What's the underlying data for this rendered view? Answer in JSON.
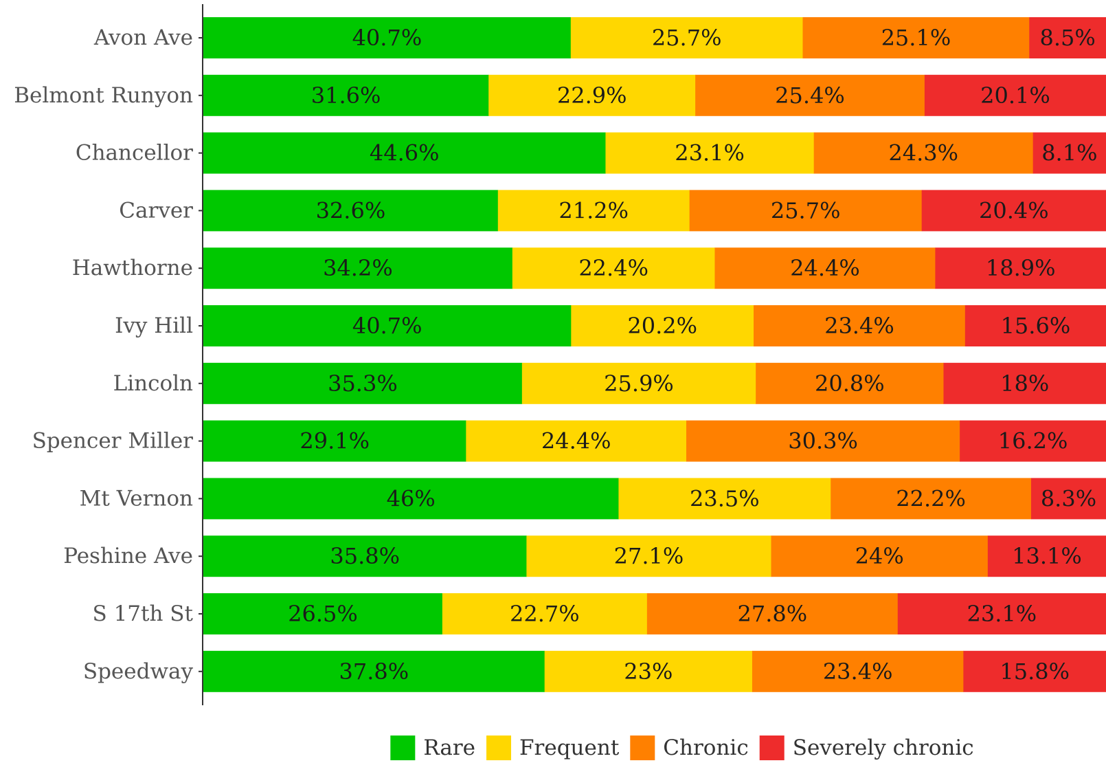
{
  "chart_data": {
    "type": "bar",
    "orientation": "horizontal",
    "stacked": true,
    "percent_stacked": true,
    "categories": [
      "Avon Ave",
      "Belmont Runyon",
      "Chancellor",
      "Carver",
      "Hawthorne",
      "Ivy Hill",
      "Lincoln",
      "Spencer Miller",
      "Mt Vernon",
      "Peshine Ave",
      "S 17th St",
      "Speedway"
    ],
    "series": [
      {
        "name": "Rare",
        "color": "#00c800",
        "values": [
          40.7,
          31.6,
          44.6,
          32.6,
          34.2,
          40.7,
          35.3,
          29.1,
          46,
          35.8,
          26.5,
          37.8
        ],
        "labels": [
          "40.7%",
          "31.6%",
          "44.6%",
          "32.6%",
          "34.2%",
          "40.7%",
          "35.3%",
          "29.1%",
          "46%",
          "35.8%",
          "26.5%",
          "37.8%"
        ]
      },
      {
        "name": "Frequent",
        "color": "#ffd700",
        "values": [
          25.7,
          22.9,
          23.1,
          21.2,
          22.4,
          20.2,
          25.9,
          24.4,
          23.5,
          27.1,
          22.7,
          23
        ],
        "labels": [
          "25.7%",
          "22.9%",
          "23.1%",
          "21.2%",
          "22.4%",
          "20.2%",
          "25.9%",
          "24.4%",
          "23.5%",
          "27.1%",
          "22.7%",
          "23%"
        ]
      },
      {
        "name": "Chronic",
        "color": "#ff8000",
        "values": [
          25.1,
          25.4,
          24.3,
          25.7,
          24.4,
          23.4,
          20.8,
          30.3,
          22.2,
          24,
          27.8,
          23.4
        ],
        "labels": [
          "25.1%",
          "25.4%",
          "24.3%",
          "25.7%",
          "24.4%",
          "23.4%",
          "20.8%",
          "30.3%",
          "22.2%",
          "24%",
          "27.8%",
          "23.4%"
        ]
      },
      {
        "name": "Severely chronic",
        "color": "#ee2c2c",
        "values": [
          8.5,
          20.1,
          8.1,
          20.4,
          18.9,
          15.6,
          18,
          16.2,
          8.3,
          13.1,
          23.1,
          15.8
        ],
        "labels": [
          "8.5%",
          "20.1%",
          "8.1%",
          "20.4%",
          "18.9%",
          "15.6%",
          "18%",
          "16.2%",
          "8.3%",
          "13.1%",
          "23.1%",
          "15.8%"
        ]
      }
    ],
    "xlim": [
      0,
      100
    ],
    "title": "",
    "xlabel": "",
    "ylabel": "",
    "grid": false,
    "legend": {
      "position": "bottom",
      "entries": [
        "Rare",
        "Frequent",
        "Chronic",
        "Severely chronic"
      ]
    }
  }
}
